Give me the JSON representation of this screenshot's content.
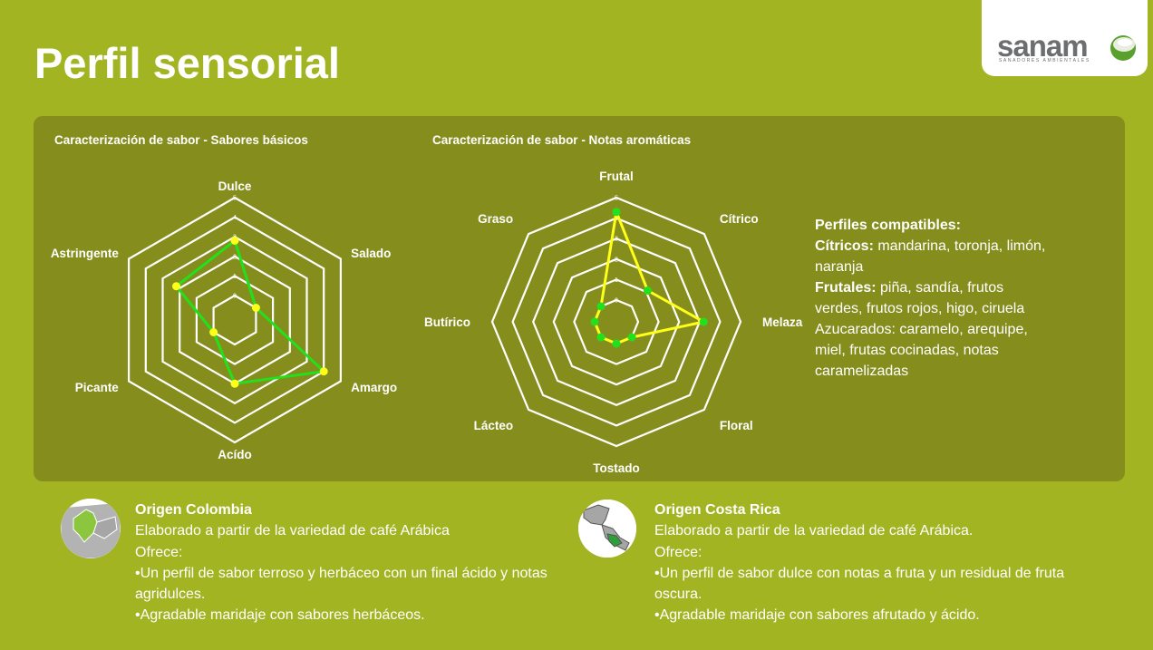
{
  "page": {
    "title": "Perfil sensorial"
  },
  "logo": {
    "word": "sanam",
    "sub": "SANADORES AMBIENTALES"
  },
  "colors": {
    "background": "#a3b423",
    "panel": "#858e1d",
    "grid": "#ffffff",
    "basic_series": "#22e01c",
    "aroma_series": "#ffff1a",
    "basic_points": "#ffff1a",
    "aroma_points": "#22e01c"
  },
  "chart_data": [
    {
      "type": "radar",
      "title": "Caracterización de sabor - Sabores básicos",
      "axes": [
        "Dulce",
        "Salado",
        "Amargo",
        "Acído",
        "Picante",
        "Astringente"
      ],
      "ticks": [
        "0",
        "1",
        "2",
        "3",
        "4",
        "5"
      ],
      "range": [
        0,
        5
      ],
      "series": [
        {
          "values": [
            2.8,
            0,
            4,
            2,
            0,
            2.2
          ]
        }
      ]
    },
    {
      "type": "radar",
      "title": "Caracterización de sabor - Notas aromáticas",
      "axes": [
        "Frutal",
        "Cítrico",
        "Melaza",
        "Floral",
        "Tostado",
        "Lácteo",
        "Butírico",
        "Graso"
      ],
      "ticks": [
        "0",
        "1",
        "2",
        "3",
        "4",
        "5"
      ],
      "range": [
        0,
        5
      ],
      "series": [
        {
          "values": [
            4.3,
            1.1,
            3.2,
            0,
            0,
            0,
            0,
            0
          ]
        }
      ]
    }
  ],
  "profiles": {
    "heading": "Perfiles compatibles:",
    "citricos_label": "Cítricos:",
    "citricos_text": " mandarina, toronja, limón, naranja",
    "frutales_label": "Frutales:",
    "frutales_text": " piña, sandía, frutos verdes, frutos rojos, higo, ciruela Azucarados: caramelo, arequipe, miel, frutas cocinadas, notas caramelizadas"
  },
  "origins": [
    {
      "title": "Origen Colombia",
      "line1": "Elaborado a partir de la variedad de café Arábica",
      "line2": "Ofrece:",
      "bullet1": "•Un perfil de sabor terroso y herbáceo con un final ácido y notas agridulces.",
      "bullet2": "•Agradable maridaje con sabores herbáceos."
    },
    {
      "title": "Origen Costa Rica",
      "line1": "Elaborado a partir de la variedad de café Arábica.",
      "line2": "Ofrece:",
      "bullet1": "•Un perfil de sabor dulce con notas a fruta y un residual de fruta oscura.",
      "bullet2": "•Agradable maridaje con sabores afrutado y ácido."
    }
  ]
}
